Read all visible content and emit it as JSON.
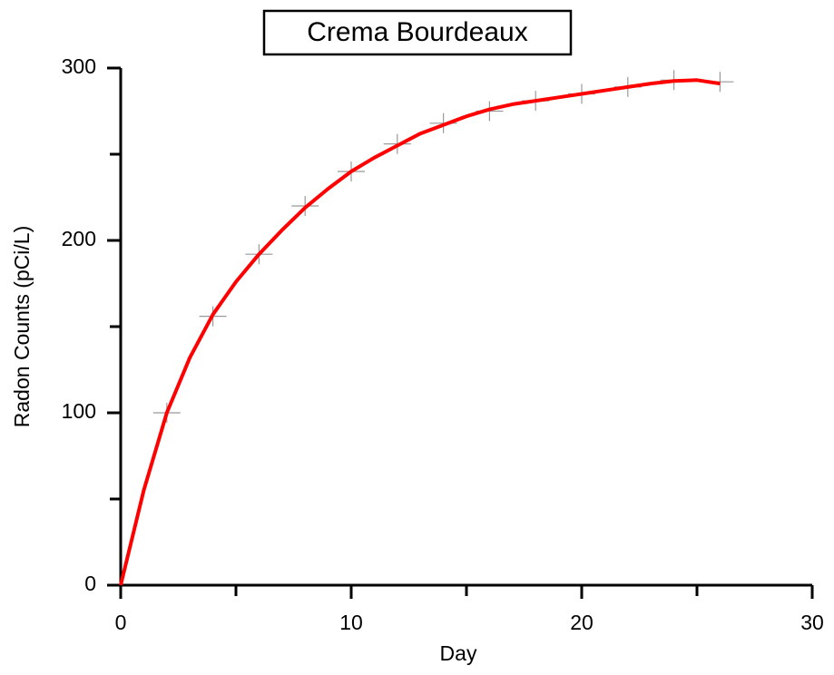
{
  "chart_data": {
    "type": "line",
    "title": "Crema Bourdeaux",
    "xlabel": "Day",
    "ylabel": "Radon Counts (pCi/L)",
    "xlim": [
      0,
      30
    ],
    "xticks": [
      0,
      10,
      20,
      30
    ],
    "xminor": [
      5,
      15,
      25
    ],
    "ylim": [
      0,
      300
    ],
    "yticks": [
      0,
      100,
      200,
      300
    ],
    "yminor": [
      50,
      150,
      250
    ],
    "series": [
      {
        "marker": "cross",
        "color": "#999999",
        "x": [
          2,
          4,
          6,
          8,
          10,
          12,
          14,
          16,
          18,
          20,
          22,
          24,
          26
        ],
        "values": [
          100,
          156,
          192,
          220,
          240,
          256,
          268,
          275,
          281,
          285,
          289,
          293,
          292
        ]
      },
      {
        "marker": "none",
        "color": "#ff0000",
        "x": [
          0,
          1,
          2,
          3,
          4,
          5,
          6,
          7,
          8,
          9,
          10,
          11,
          12,
          13,
          14,
          15,
          16,
          17,
          18,
          19,
          20,
          21,
          22,
          23,
          24,
          25,
          26
        ],
        "values": [
          0,
          55,
          100,
          132,
          157,
          176,
          192,
          206,
          219,
          230,
          240,
          248,
          255,
          262,
          267,
          272,
          276,
          279,
          281,
          283,
          285,
          287,
          289,
          291,
          292.5,
          293,
          291
        ]
      }
    ]
  }
}
